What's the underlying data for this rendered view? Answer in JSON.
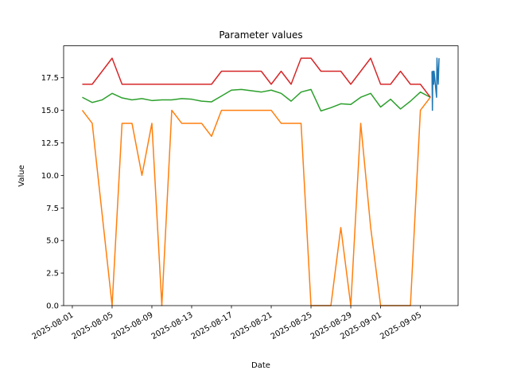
{
  "chart_data": {
    "type": "line",
    "title": "Parameter values",
    "xlabel": "Date",
    "ylabel": "Value",
    "xlim": [
      "2025-07-31T03:00",
      "2025-09-08T19:00"
    ],
    "xticks": [
      "2025-08-01",
      "2025-08-05",
      "2025-08-09",
      "2025-08-13",
      "2025-08-17",
      "2025-08-21",
      "2025-08-25",
      "2025-08-29",
      "2025-09-01",
      "2025-09-05"
    ],
    "ylim": [
      0,
      19.95
    ],
    "yticks": [
      {
        "value": 0,
        "label": "0.0"
      },
      2.5,
      {
        "value": 5,
        "label": "5.0"
      },
      7.5,
      {
        "value": 10,
        "label": "10.0"
      },
      12.5,
      {
        "value": 15,
        "label": "15.0"
      },
      17.5
    ],
    "x": [
      "2025-08-02",
      "2025-08-03",
      "2025-08-04",
      "2025-08-05",
      "2025-08-06",
      "2025-08-07",
      "2025-08-08",
      "2025-08-09",
      "2025-08-10",
      "2025-08-11",
      "2025-08-12",
      "2025-08-13",
      "2025-08-14",
      "2025-08-15",
      "2025-08-16",
      "2025-08-17",
      "2025-08-18",
      "2025-08-19",
      "2025-08-20",
      "2025-08-21",
      "2025-08-22",
      "2025-08-23",
      "2025-08-24",
      "2025-08-25",
      "2025-08-26",
      "2025-08-27",
      "2025-08-28",
      "2025-08-29",
      "2025-08-30",
      "2025-08-31",
      "2025-09-01",
      "2025-09-02",
      "2025-09-03",
      "2025-09-04",
      "2025-09-05",
      "2025-09-06"
    ],
    "series": [
      {
        "color": "#1f77b4",
        "x": [
          "2025-09-06T04:00",
          "2025-09-06T05:00",
          "2025-09-06T06:00",
          "2025-09-06T08:00",
          "2025-09-06T09:00",
          "2025-09-06T15:00",
          "2025-09-06T16:00",
          "2025-09-06T19:00",
          "2025-09-06T21:00"
        ],
        "values": [
          18,
          15,
          18,
          17,
          18,
          16,
          19,
          17,
          19
        ]
      },
      {
        "color": "#ff7f0e",
        "values": [
          15,
          14,
          7,
          0,
          14,
          14,
          10,
          14,
          0,
          15,
          14,
          14,
          14,
          13,
          15,
          15,
          15,
          15,
          15,
          15,
          14,
          14,
          14,
          0,
          0,
          0,
          6,
          0,
          14,
          6,
          0,
          0,
          0,
          0,
          15,
          16
        ]
      },
      {
        "color": "#2ca02c",
        "values": [
          16,
          15.6,
          15.8,
          16.3,
          15.95,
          15.8,
          15.9,
          15.75,
          15.8,
          15.8,
          15.9,
          15.85,
          15.7,
          15.65,
          16.1,
          16.55,
          16.6,
          16.5,
          16.4,
          16.55,
          16.3,
          15.7,
          16.4,
          16.6,
          14.95,
          15.2,
          15.5,
          15.45,
          16.0,
          16.3,
          15.25,
          15.85,
          15.1,
          15.7,
          16.4,
          16.0
        ]
      },
      {
        "color": "#d62728",
        "values": [
          17,
          17,
          18,
          19,
          17,
          17,
          17,
          17,
          17,
          17,
          17,
          17,
          17,
          17,
          18,
          18,
          18,
          18,
          18,
          17,
          18,
          17,
          19,
          19,
          18,
          18,
          18,
          17,
          18,
          19,
          17,
          17,
          18,
          17,
          17,
          16
        ]
      }
    ]
  }
}
